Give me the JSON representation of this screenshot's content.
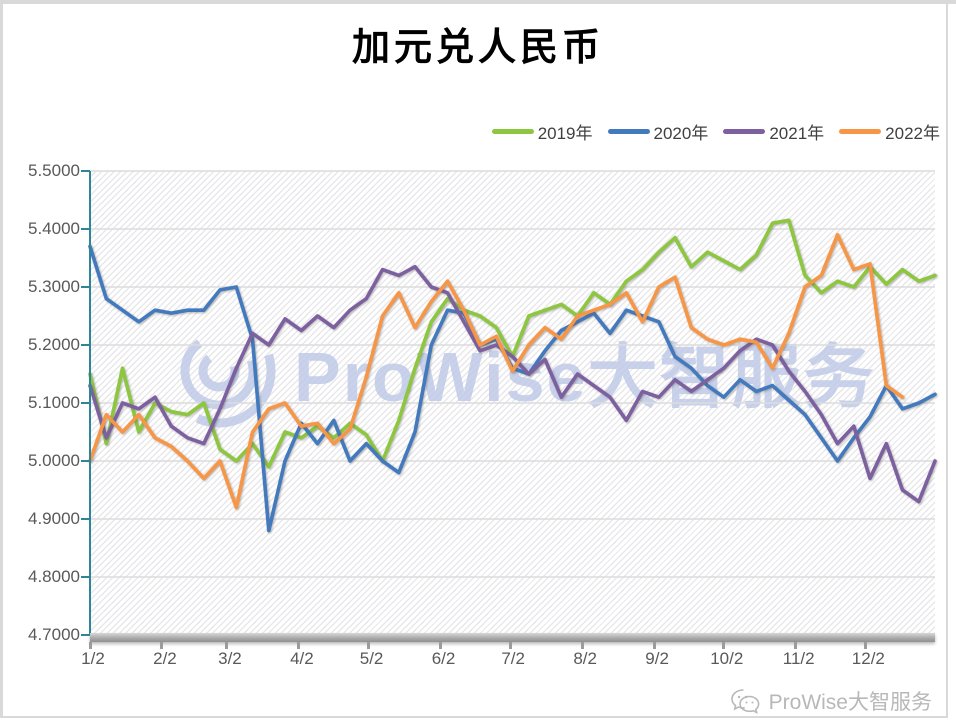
{
  "title": "加元兑人民币",
  "legend": {
    "position": "top-right",
    "items": [
      {
        "label": "2019年",
        "color": "#8DC63F"
      },
      {
        "label": "2020年",
        "color": "#4379BD"
      },
      {
        "label": "2021年",
        "color": "#7D60A0"
      },
      {
        "label": "2022年",
        "color": "#F79646"
      }
    ]
  },
  "watermarks": {
    "center": {
      "icon": "signal-arcs-icon",
      "text": "ProWise大智服务",
      "color": "#BCC8E6"
    },
    "footer": {
      "icon": "wechat-icon",
      "text": "ProWise大智服务",
      "color": "#B8B8B8"
    }
  },
  "colors": {
    "y_axis": "#2E8598",
    "x_axis_bar": "#A8A8A8",
    "gridline": "#DCDCDC",
    "tick_label": "#595959",
    "title": "#000000"
  },
  "chart_data": {
    "type": "line",
    "title": "加元兑人民币",
    "xlabel": "",
    "ylabel": "",
    "ylim": [
      4.7,
      5.5
    ],
    "grid": "horizontal",
    "plot_background": "diagonal-hatch",
    "y_tick_labels": [
      "5.5000",
      "5.4000",
      "5.3000",
      "5.2000",
      "5.1000",
      "5.0000",
      "4.9000",
      "4.8000",
      "4.7000"
    ],
    "x_tick_labels": [
      "1/2",
      "2/2",
      "3/2",
      "4/2",
      "5/2",
      "6/2",
      "7/2",
      "8/2",
      "9/2",
      "10/2",
      "11/2",
      "12/2"
    ],
    "month_start_days": [
      2,
      33,
      61,
      92,
      122,
      153,
      183,
      214,
      245,
      275,
      306,
      336
    ],
    "x_unit": "weekly samples, day-of-year = 2 + 7 * index",
    "series": [
      {
        "name": "2019年",
        "color": "#8DC63F",
        "values": [
          5.15,
          5.03,
          5.16,
          5.05,
          5.1,
          5.085,
          5.08,
          5.1,
          5.02,
          5.0,
          5.03,
          4.99,
          5.05,
          5.04,
          5.06,
          5.04,
          5.065,
          5.045,
          5.0,
          5.07,
          5.16,
          5.24,
          5.28,
          5.26,
          5.25,
          5.23,
          5.18,
          5.25,
          5.26,
          5.27,
          5.25,
          5.29,
          5.27,
          5.31,
          5.33,
          5.36,
          5.385,
          5.335,
          5.36,
          5.345,
          5.33,
          5.355,
          5.41,
          5.415,
          5.32,
          5.29,
          5.31,
          5.3,
          5.335,
          5.305,
          5.33,
          5.31,
          5.32
        ]
      },
      {
        "name": "2020年",
        "color": "#4379BD",
        "values": [
          5.37,
          5.28,
          5.26,
          5.24,
          5.26,
          5.255,
          5.26,
          5.26,
          5.295,
          5.3,
          5.21,
          4.88,
          5.0,
          5.065,
          5.03,
          5.07,
          5.0,
          5.03,
          5.0,
          4.98,
          5.05,
          5.2,
          5.26,
          5.255,
          5.2,
          5.21,
          5.16,
          5.15,
          5.19,
          5.225,
          5.24,
          5.255,
          5.22,
          5.26,
          5.25,
          5.24,
          5.18,
          5.16,
          5.13,
          5.11,
          5.14,
          5.12,
          5.13,
          5.105,
          5.08,
          5.04,
          5.0,
          5.04,
          5.076,
          5.13,
          5.09,
          5.1,
          5.115
        ]
      },
      {
        "name": "2021年",
        "color": "#7D60A0",
        "values": [
          5.13,
          5.04,
          5.1,
          5.09,
          5.11,
          5.06,
          5.04,
          5.03,
          5.09,
          5.16,
          5.22,
          5.2,
          5.245,
          5.225,
          5.25,
          5.23,
          5.26,
          5.28,
          5.33,
          5.32,
          5.335,
          5.3,
          5.29,
          5.24,
          5.19,
          5.2,
          5.18,
          5.15,
          5.175,
          5.11,
          5.15,
          5.13,
          5.11,
          5.07,
          5.12,
          5.11,
          5.14,
          5.12,
          5.14,
          5.16,
          5.19,
          5.21,
          5.2,
          5.155,
          5.12,
          5.08,
          5.03,
          5.06,
          4.97,
          5.03,
          4.95,
          4.93,
          5.0
        ]
      },
      {
        "name": "2022年",
        "color": "#F79646",
        "values": [
          5.0,
          5.08,
          5.05,
          5.08,
          5.04,
          5.025,
          5.0,
          4.97,
          5.0,
          4.92,
          5.05,
          5.09,
          5.1,
          5.06,
          5.065,
          5.03,
          5.055,
          5.145,
          5.25,
          5.29,
          5.23,
          5.275,
          5.31,
          5.26,
          5.2,
          5.215,
          5.155,
          5.2,
          5.23,
          5.21,
          5.25,
          5.26,
          5.27,
          5.29,
          5.24,
          5.3,
          5.317,
          5.23,
          5.21,
          5.2,
          5.21,
          5.205,
          5.16,
          5.22,
          5.3,
          5.32,
          5.39,
          5.33,
          5.34,
          5.13,
          5.11
        ]
      }
    ],
    "legend_entries": [
      "2019年",
      "2020年",
      "2021年",
      "2022年"
    ],
    "legend_position": "top-right"
  }
}
